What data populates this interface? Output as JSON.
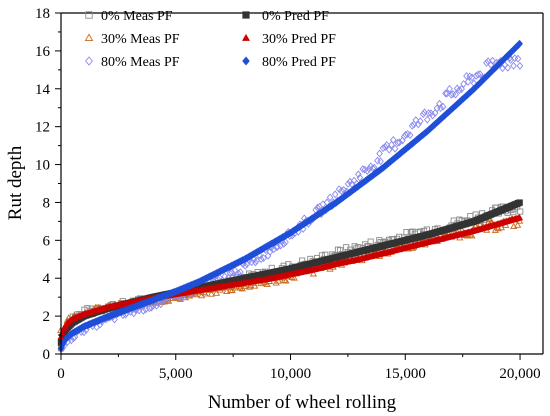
{
  "chart_data": {
    "type": "scatter",
    "title": "",
    "xlabel": "Number of wheel rolling",
    "ylabel": "Rut depth",
    "xlim": [
      0,
      21000
    ],
    "ylim": [
      0,
      18
    ],
    "xticks": [
      0,
      5000,
      10000,
      15000,
      20000
    ],
    "xtick_labels": [
      "0",
      "5,000",
      "10,000",
      "15,000",
      "20,000"
    ],
    "yticks": [
      0,
      2,
      4,
      6,
      8,
      10,
      12,
      14,
      16,
      18
    ],
    "ytick_labels": [
      "0",
      "2",
      "4",
      "6",
      "8",
      "10",
      "12",
      "14",
      "16",
      "18"
    ],
    "grid": false,
    "legend_position": "top-left",
    "series": [
      {
        "name": "0% Meas PF",
        "marker": "square-open",
        "color": "#8c8c8c",
        "x": [
          0,
          250,
          500,
          1000,
          1500,
          2000,
          3000,
          4000,
          5000,
          6000,
          7000,
          8000,
          9000,
          10000,
          11000,
          12000,
          13000,
          14000,
          15000,
          16000,
          17000,
          18000,
          19000,
          20000
        ],
        "y": [
          0.3,
          1.5,
          1.9,
          2.2,
          2.4,
          2.5,
          2.7,
          2.9,
          3.1,
          3.4,
          3.7,
          4.0,
          4.3,
          4.6,
          4.9,
          5.3,
          5.6,
          5.9,
          6.2,
          6.5,
          6.8,
          7.2,
          7.5,
          7.8
        ]
      },
      {
        "name": "0% Pred PF",
        "marker": "square-filled",
        "color": "#333333",
        "x": [
          0,
          100,
          250,
          500,
          1000,
          2000,
          3000,
          4000,
          5000,
          6000,
          7000,
          8000,
          9000,
          10000,
          11000,
          12000,
          13000,
          14000,
          15000,
          16000,
          17000,
          18000,
          19000,
          20000
        ],
        "y": [
          0.6,
          1.0,
          1.35,
          1.65,
          2.0,
          2.4,
          2.7,
          3.0,
          3.25,
          3.5,
          3.75,
          4.0,
          4.25,
          4.5,
          4.8,
          5.1,
          5.4,
          5.7,
          6.0,
          6.3,
          6.65,
          7.0,
          7.5,
          8.0
        ]
      },
      {
        "name": "30% Meas PF",
        "marker": "triangle-open",
        "color": "#c8691e",
        "x": [
          0,
          250,
          500,
          1000,
          1500,
          2000,
          3000,
          4000,
          5000,
          6000,
          7000,
          8000,
          9000,
          10000,
          11000,
          12000,
          13000,
          14000,
          15000,
          16000,
          17000,
          18000,
          19000,
          20000
        ],
        "y": [
          1.2,
          1.7,
          1.9,
          2.1,
          2.3,
          2.4,
          2.6,
          2.8,
          3.0,
          3.2,
          3.4,
          3.6,
          3.8,
          4.1,
          4.4,
          4.8,
          5.1,
          5.4,
          5.7,
          6.0,
          6.3,
          6.5,
          6.8,
          7.0
        ]
      },
      {
        "name": "30% Pred PF",
        "marker": "triangle-filled",
        "color": "#cc0000",
        "x": [
          0,
          100,
          250,
          500,
          1000,
          2000,
          3000,
          4000,
          5000,
          6000,
          7000,
          8000,
          9000,
          10000,
          11000,
          12000,
          13000,
          14000,
          15000,
          16000,
          17000,
          18000,
          19000,
          20000
        ],
        "y": [
          0.9,
          1.3,
          1.6,
          1.85,
          2.1,
          2.45,
          2.7,
          2.95,
          3.15,
          3.35,
          3.55,
          3.75,
          3.95,
          4.2,
          4.45,
          4.75,
          5.0,
          5.3,
          5.6,
          5.9,
          6.2,
          6.5,
          6.85,
          7.2
        ]
      },
      {
        "name": "80% Meas PF",
        "marker": "diamond-open",
        "color": "#8a8aee",
        "x": [
          0,
          250,
          500,
          1000,
          2000,
          3000,
          4000,
          5000,
          6000,
          7000,
          8000,
          9000,
          10000,
          11000,
          12000,
          13000,
          14000,
          15000,
          16000,
          17000,
          18000,
          19000,
          20000
        ],
        "y": [
          0.2,
          0.6,
          0.9,
          1.3,
          1.8,
          2.2,
          2.6,
          3.0,
          3.4,
          3.9,
          4.6,
          5.4,
          6.3,
          7.3,
          8.3,
          9.4,
          10.5,
          11.6,
          12.7,
          13.7,
          14.6,
          15.3,
          15.6
        ]
      },
      {
        "name": "80% Pred PF",
        "marker": "diamond-filled",
        "color": "#1f4ed8",
        "x": [
          0,
          100,
          250,
          500,
          1000,
          2000,
          3000,
          4000,
          5000,
          6000,
          7000,
          8000,
          9000,
          10000,
          11000,
          12000,
          13000,
          14000,
          15000,
          16000,
          17000,
          18000,
          19000,
          20000
        ],
        "y": [
          0.3,
          0.6,
          0.85,
          1.1,
          1.45,
          1.95,
          2.4,
          2.85,
          3.3,
          3.8,
          4.4,
          5.0,
          5.7,
          6.4,
          7.2,
          8.0,
          8.9,
          9.8,
          10.8,
          11.8,
          12.9,
          14.0,
          15.2,
          16.4
        ]
      }
    ]
  }
}
